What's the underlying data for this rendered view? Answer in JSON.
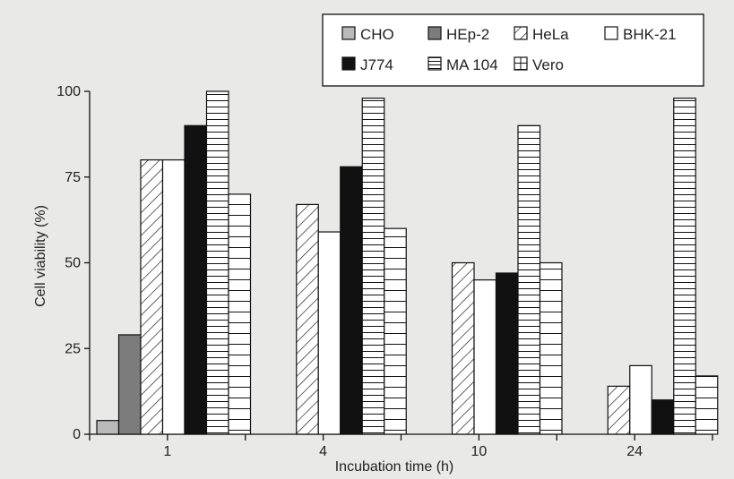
{
  "chart_data": {
    "type": "bar",
    "title": "",
    "xlabel": "Incubation time (h)",
    "ylabel": "Cell viability (%)",
    "ylim": [
      0,
      100
    ],
    "yticks": [
      0,
      25,
      50,
      75,
      100
    ],
    "categories": [
      "1",
      "4",
      "10",
      "24"
    ],
    "grid": false,
    "legend_position": "top-right",
    "series": [
      {
        "name": "CHO",
        "pattern": "solid-light-gray",
        "values": [
          4,
          0,
          0,
          0
        ]
      },
      {
        "name": "HEp-2",
        "pattern": "solid-dark-gray",
        "values": [
          29,
          0,
          0,
          0
        ]
      },
      {
        "name": "HeLa",
        "pattern": "diagonal-hatch",
        "values": [
          80,
          67,
          50,
          14
        ]
      },
      {
        "name": "BHK-21",
        "pattern": "white",
        "values": [
          80,
          59,
          45,
          20
        ]
      },
      {
        "name": "J774",
        "pattern": "solid-black",
        "values": [
          90,
          78,
          47,
          10
        ]
      },
      {
        "name": "MA 104",
        "pattern": "horizontal-lines",
        "values": [
          100,
          98,
          90,
          98
        ]
      },
      {
        "name": "Vero",
        "pattern": "grid",
        "values": [
          70,
          60,
          50,
          17
        ]
      }
    ],
    "legend_rows": [
      [
        "CHO",
        "HEp-2",
        "HeLa",
        "BHK-21"
      ],
      [
        "J774",
        "MA 104",
        "Vero"
      ]
    ]
  },
  "colors": {
    "background": "#e9e9e8",
    "light_gray": "#b9b9b9",
    "dark_gray": "#7c7c7c",
    "black": "#111111",
    "white": "#ffffff"
  }
}
